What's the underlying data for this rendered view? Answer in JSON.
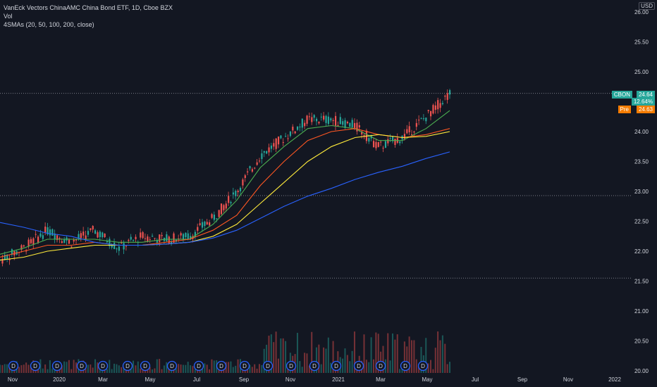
{
  "legend": {
    "line1": "VanEck Vectors ChinaAMC China Bond ETF, 1D, Cboe BZX",
    "line2": "Vol",
    "line3": "4SMAs (20, 50, 100, 200, close)"
  },
  "currency": "USD",
  "last": {
    "symbol": "CBON",
    "price": "24.64",
    "change_pct": "12.64%",
    "pre_label": "Pre",
    "pre_price": "24.63"
  },
  "colors": {
    "background": "#131722",
    "up": "#26a69a",
    "down": "#ef5350",
    "sma20": "#4caf50",
    "sma50": "#ff5722",
    "sma100": "#ffeb3b",
    "sma200": "#2962ff",
    "dividend": "#2962ff"
  },
  "chart_data": {
    "type": "line",
    "chart_style": "candlestick",
    "symbol": "CBON",
    "interval": "1D",
    "price_axis": {
      "ticks": [
        "26.00",
        "25.50",
        "25.00",
        "24.50",
        "24.00",
        "23.50",
        "23.00",
        "22.50",
        "22.00",
        "21.50",
        "21.00",
        "20.50",
        "20.00"
      ],
      "range": [
        20.0,
        26.0
      ]
    },
    "time_axis": {
      "ticks": [
        "Nov",
        "2020",
        "Mar",
        "May",
        "Jul",
        "Sep",
        "Nov",
        "2021",
        "Mar",
        "May",
        "Jul",
        "Sep",
        "Nov",
        "2022"
      ]
    },
    "horizontal_lines": [
      24.64,
      22.93,
      21.55
    ],
    "dividend_marker_label": "D",
    "dividend_months": [
      "Nov",
      "Dec",
      "Jan",
      "Feb",
      "Mar",
      "Apr",
      "May",
      "Jun",
      "Jul",
      "Aug",
      "Sep",
      "Oct",
      "Nov",
      "Dec",
      "Jan",
      "Feb",
      "Mar",
      "Apr",
      "May"
    ],
    "series": [
      {
        "name": "Close",
        "points": [
          [
            "Nov",
            21.85
          ],
          [
            "Dec",
            22.05
          ],
          [
            "2020",
            22.35
          ],
          [
            "Feb",
            22.15
          ],
          [
            "Mar",
            22.35
          ],
          [
            "Apr",
            22.05
          ],
          [
            "May",
            22.25
          ],
          [
            "Jun",
            22.2
          ],
          [
            "Jul",
            22.25
          ],
          [
            "Aug",
            22.55
          ],
          [
            "Sep",
            23.0
          ],
          [
            "Oct",
            23.6
          ],
          [
            "Nov",
            23.9
          ],
          [
            "Dec",
            24.2
          ],
          [
            "2021",
            24.2
          ],
          [
            "Feb",
            24.1
          ],
          [
            "Mar",
            23.75
          ],
          [
            "Apr",
            23.9
          ],
          [
            "May",
            24.25
          ],
          [
            "Jun",
            24.64
          ]
        ]
      },
      {
        "name": "SMA 20",
        "points": [
          [
            "Nov",
            21.95
          ],
          [
            "Dec",
            22.05
          ],
          [
            "2020",
            22.2
          ],
          [
            "Feb",
            22.2
          ],
          [
            "Mar",
            22.2
          ],
          [
            "Apr",
            22.15
          ],
          [
            "May",
            22.15
          ],
          [
            "Jun",
            22.2
          ],
          [
            "Jul",
            22.2
          ],
          [
            "Aug",
            22.45
          ],
          [
            "Sep",
            22.85
          ],
          [
            "Oct",
            23.4
          ],
          [
            "Nov",
            23.75
          ],
          [
            "Dec",
            24.05
          ],
          [
            "2021",
            24.1
          ],
          [
            "Feb",
            24.05
          ],
          [
            "Mar",
            23.85
          ],
          [
            "Apr",
            23.85
          ],
          [
            "May",
            24.05
          ],
          [
            "Jun",
            24.35
          ]
        ]
      },
      {
        "name": "SMA 50",
        "points": [
          [
            "Nov",
            21.9
          ],
          [
            "Dec",
            22.0
          ],
          [
            "2020",
            22.1
          ],
          [
            "Feb",
            22.1
          ],
          [
            "Mar",
            22.15
          ],
          [
            "Apr",
            22.1
          ],
          [
            "May",
            22.1
          ],
          [
            "Jun",
            22.15
          ],
          [
            "Jul",
            22.2
          ],
          [
            "Aug",
            22.35
          ],
          [
            "Sep",
            22.6
          ],
          [
            "Oct",
            23.1
          ],
          [
            "Nov",
            23.5
          ],
          [
            "Dec",
            23.85
          ],
          [
            "2021",
            24.0
          ],
          [
            "Feb",
            24.05
          ],
          [
            "Mar",
            23.95
          ],
          [
            "Apr",
            23.9
          ],
          [
            "May",
            23.95
          ],
          [
            "Jun",
            24.05
          ]
        ]
      },
      {
        "name": "SMA 100",
        "points": [
          [
            "Nov",
            21.85
          ],
          [
            "Dec",
            21.9
          ],
          [
            "2020",
            22.0
          ],
          [
            "Feb",
            22.05
          ],
          [
            "Mar",
            22.1
          ],
          [
            "Apr",
            22.1
          ],
          [
            "May",
            22.1
          ],
          [
            "Jun",
            22.12
          ],
          [
            "Jul",
            22.15
          ],
          [
            "Aug",
            22.25
          ],
          [
            "Sep",
            22.45
          ],
          [
            "Oct",
            22.8
          ],
          [
            "Nov",
            23.15
          ],
          [
            "Dec",
            23.5
          ],
          [
            "2021",
            23.75
          ],
          [
            "Feb",
            23.9
          ],
          [
            "Mar",
            23.95
          ],
          [
            "Apr",
            23.9
          ],
          [
            "May",
            23.92
          ],
          [
            "Jun",
            24.0
          ]
        ]
      },
      {
        "name": "SMA 200",
        "points": [
          [
            "Nov",
            22.48
          ],
          [
            "Dec",
            22.4
          ],
          [
            "2020",
            22.3
          ],
          [
            "Feb",
            22.25
          ],
          [
            "Mar",
            22.15
          ],
          [
            "Apr",
            22.1
          ],
          [
            "May",
            22.1
          ],
          [
            "Jun",
            22.12
          ],
          [
            "Jul",
            22.15
          ],
          [
            "Aug",
            22.22
          ],
          [
            "Sep",
            22.35
          ],
          [
            "Oct",
            22.55
          ],
          [
            "Nov",
            22.75
          ],
          [
            "Dec",
            22.92
          ],
          [
            "2021",
            23.05
          ],
          [
            "Feb",
            23.2
          ],
          [
            "Mar",
            23.32
          ],
          [
            "Apr",
            23.42
          ],
          [
            "May",
            23.55
          ],
          [
            "Jun",
            23.66
          ]
        ]
      }
    ],
    "grid": false,
    "legend_position": "top-left"
  }
}
